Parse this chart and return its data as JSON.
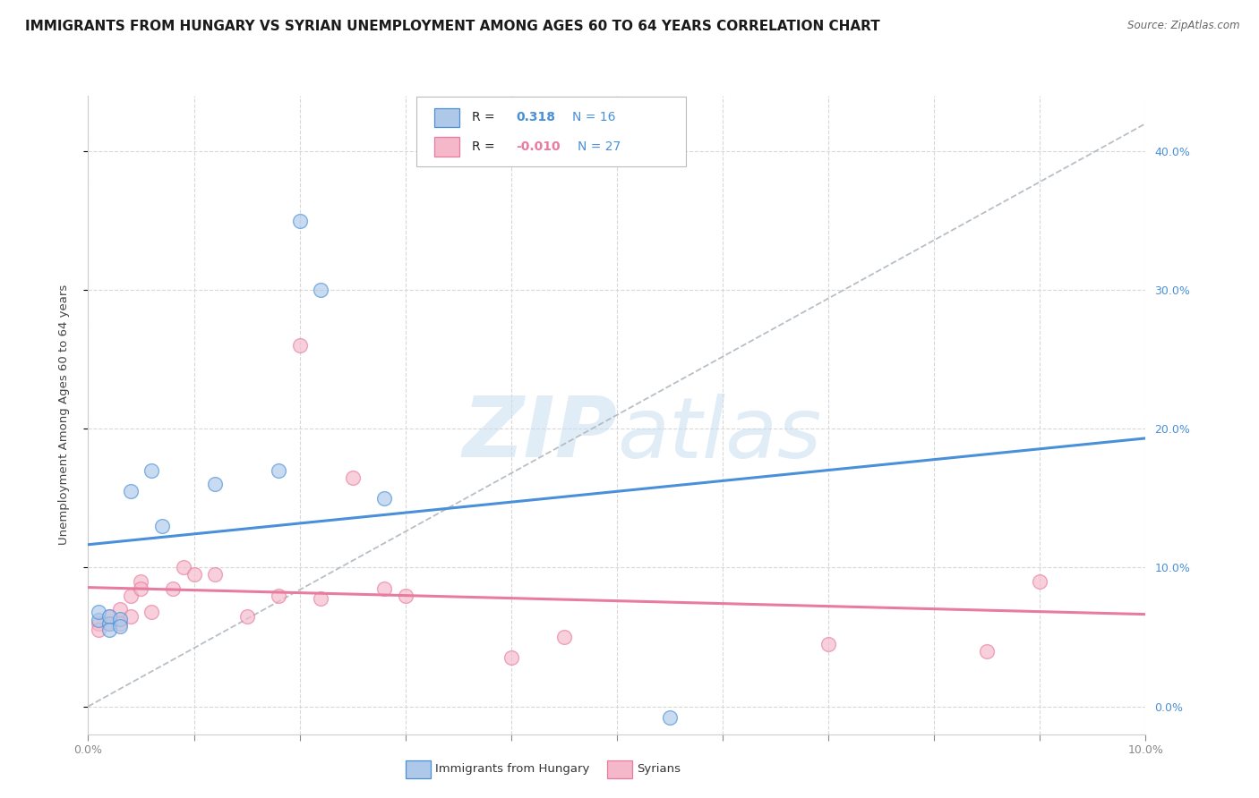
{
  "title": "IMMIGRANTS FROM HUNGARY VS SYRIAN UNEMPLOYMENT AMONG AGES 60 TO 64 YEARS CORRELATION CHART",
  "source": "Source: ZipAtlas.com",
  "ylabel": "Unemployment Among Ages 60 to 64 years",
  "xlim": [
    0.0,
    0.1
  ],
  "ylim": [
    -0.02,
    0.44
  ],
  "legend_entries": [
    {
      "label": "Immigrants from Hungary",
      "R": "0.318",
      "N": "16",
      "color": "#adc8e8"
    },
    {
      "label": "Syrians",
      "R": "-0.010",
      "N": "27",
      "color": "#f5b8ca"
    }
  ],
  "hungary_scatter_x": [
    0.001,
    0.001,
    0.002,
    0.002,
    0.002,
    0.003,
    0.003,
    0.004,
    0.006,
    0.007,
    0.012,
    0.018,
    0.02,
    0.022,
    0.028,
    0.055
  ],
  "hungary_scatter_y": [
    0.062,
    0.068,
    0.06,
    0.065,
    0.055,
    0.063,
    0.058,
    0.155,
    0.17,
    0.13,
    0.16,
    0.17,
    0.35,
    0.3,
    0.15,
    -0.008
  ],
  "syria_scatter_x": [
    0.001,
    0.001,
    0.002,
    0.002,
    0.003,
    0.003,
    0.004,
    0.004,
    0.005,
    0.005,
    0.006,
    0.008,
    0.009,
    0.01,
    0.012,
    0.015,
    0.018,
    0.02,
    0.022,
    0.025,
    0.028,
    0.03,
    0.04,
    0.045,
    0.07,
    0.085,
    0.09
  ],
  "syria_scatter_y": [
    0.06,
    0.055,
    0.065,
    0.06,
    0.07,
    0.06,
    0.065,
    0.08,
    0.09,
    0.085,
    0.068,
    0.085,
    0.1,
    0.095,
    0.095,
    0.065,
    0.08,
    0.26,
    0.078,
    0.165,
    0.085,
    0.08,
    0.035,
    0.05,
    0.045,
    0.04,
    0.09
  ],
  "hungary_line_color": "#4a90d9",
  "syria_line_color": "#e87ca0",
  "diagonal_line_color": "#b0b8c0",
  "scatter_alpha": 0.65,
  "scatter_size": 130,
  "background_color": "#ffffff",
  "grid_color": "#d8d8d8",
  "title_fontsize": 11,
  "axis_label_fontsize": 9.5,
  "tick_fontsize": 9,
  "watermark_color": "#c8ddf0",
  "watermark_alpha": 0.55
}
